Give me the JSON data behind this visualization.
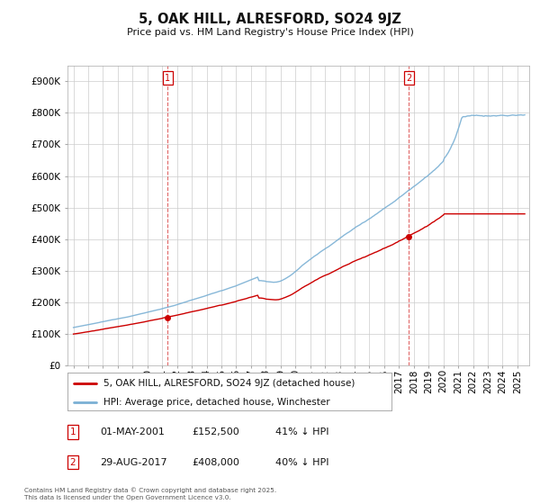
{
  "title": "5, OAK HILL, ALRESFORD, SO24 9JZ",
  "subtitle": "Price paid vs. HM Land Registry's House Price Index (HPI)",
  "legend_property": "5, OAK HILL, ALRESFORD, SO24 9JZ (detached house)",
  "legend_hpi": "HPI: Average price, detached house, Winchester",
  "property_color": "#cc0000",
  "hpi_color": "#7ab0d4",
  "vline_color": "#cc0000",
  "annotation1_date": "01-MAY-2001",
  "annotation1_price": "£152,500",
  "annotation1_pct": "41% ↓ HPI",
  "annotation1_year": 2001.37,
  "annotation1_value": 152500,
  "annotation2_date": "29-AUG-2017",
  "annotation2_price": "£408,000",
  "annotation2_pct": "40% ↓ HPI",
  "annotation2_year": 2017.66,
  "annotation2_value": 408000,
  "footer": "Contains HM Land Registry data © Crown copyright and database right 2025.\nThis data is licensed under the Open Government Licence v3.0.",
  "ylim_max": 950000,
  "background_color": "#ffffff",
  "grid_color": "#cccccc"
}
